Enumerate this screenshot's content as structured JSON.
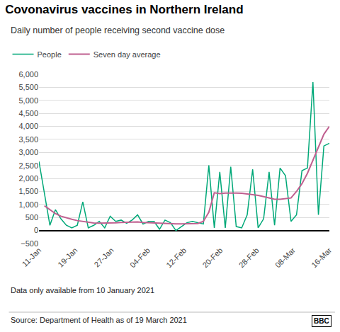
{
  "chart_data": {
    "type": "line",
    "title": "Covonavirus vaccines in Northern Ireland",
    "subtitle": "Daily number of people receiving second vaccine dose",
    "footnotes": [
      "Data only available from 10 January 2021",
      "Source: Department of Health as of 19 March 2021"
    ],
    "logo": "BBC",
    "x": [
      0,
      1,
      2,
      3,
      4,
      5,
      6,
      7,
      8,
      9,
      10,
      11,
      12,
      13,
      14,
      15,
      16,
      17,
      18,
      19,
      20,
      21,
      22,
      23,
      24,
      25,
      26,
      27,
      28,
      29,
      30,
      31,
      32,
      33,
      34,
      35,
      36,
      37,
      38,
      39,
      40,
      41,
      42,
      43,
      44,
      45,
      46,
      47,
      48,
      49,
      50,
      51,
      52,
      53
    ],
    "xlim": [
      0,
      53
    ],
    "xticks": [
      {
        "value": 0,
        "label": "11-Jan"
      },
      {
        "value": 6.625,
        "label": "19-Jan"
      },
      {
        "value": 13.25,
        "label": "27-Jan"
      },
      {
        "value": 19.875,
        "label": "04-Feb"
      },
      {
        "value": 26.5,
        "label": "12-Feb"
      },
      {
        "value": 33.125,
        "label": "20-Feb"
      },
      {
        "value": 39.75,
        "label": "28-Feb"
      },
      {
        "value": 46.375,
        "label": "08-Mar"
      },
      {
        "value": 53,
        "label": "16-Mar"
      }
    ],
    "ylim": [
      -500,
      6000
    ],
    "yticks": [
      {
        "value": -500,
        "label": "−500"
      },
      0,
      500,
      {
        "value": 1000,
        "label": "1,000"
      },
      {
        "value": 1500,
        "label": "1,500"
      },
      {
        "value": 2000,
        "label": "2,000"
      },
      {
        "value": 2500,
        "label": "2,500"
      },
      {
        "value": 3000,
        "label": "3,000"
      },
      {
        "value": 3500,
        "label": "3,500"
      },
      {
        "value": 4000,
        "label": "4,000"
      },
      {
        "value": 4500,
        "label": "4,500"
      },
      {
        "value": 5000,
        "label": "5,000"
      },
      {
        "value": 5500,
        "label": "5,500"
      },
      {
        "value": 6000,
        "label": "6,000"
      }
    ],
    "grid": "y",
    "legend": "upper left",
    "series": [
      {
        "name": "People",
        "color": "#00a878",
        "values": [
          2650,
          1400,
          200,
          800,
          450,
          200,
          100,
          200,
          1100,
          100,
          200,
          350,
          100,
          550,
          350,
          400,
          280,
          400,
          600,
          250,
          350,
          350,
          50,
          400,
          300,
          0,
          150,
          300,
          350,
          300,
          250,
          2500,
          100,
          2250,
          100,
          2450,
          150,
          100,
          600,
          2350,
          100,
          450,
          2250,
          200,
          2400,
          2100,
          350,
          600,
          2300,
          2400,
          5700,
          600,
          3250,
          3350
        ]
      },
      {
        "name": "Seven day average",
        "color": "#c06090",
        "values": [
          null,
          950,
          800,
          650,
          550,
          480,
          430,
          380,
          350,
          310,
          290,
          280,
          280,
          285,
          295,
          310,
          320,
          330,
          330,
          310,
          300,
          285,
          270,
          265,
          260,
          255,
          255,
          260,
          265,
          270,
          350,
          700,
          1450,
          1420,
          1440,
          1450,
          1440,
          1430,
          1410,
          1380,
          1350,
          1300,
          1250,
          1200,
          1200,
          1220,
          1250,
          1500,
          1800,
          2200,
          2700,
          3200,
          3700,
          4000
        ]
      }
    ]
  }
}
